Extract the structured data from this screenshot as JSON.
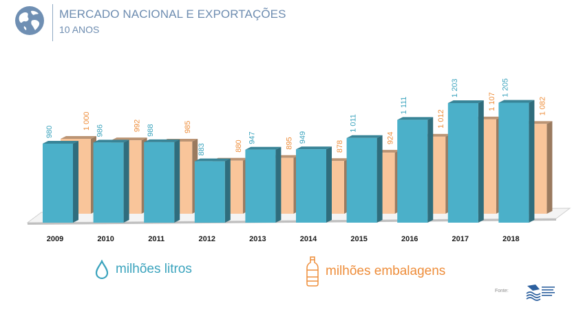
{
  "header": {
    "title": "MERCADO NACIONAL E EXPORTAÇÕES",
    "subtitle": "10 ANOS"
  },
  "legend": {
    "litros": "milhões litros",
    "embalagens": "milhões embalagens"
  },
  "source_label": "Fonte:",
  "colors": {
    "litros": "#4bb0c9",
    "embalagens": "#f9c59a",
    "litros_label": "#3aa3bd",
    "embalagens_label": "#ee8d3a",
    "title": "#6d8cb0"
  },
  "chart_data": {
    "type": "bar",
    "title": "MERCADO NACIONAL E EXPORTAÇÕES",
    "subtitle": "10 ANOS",
    "categories": [
      "2009",
      "2010",
      "2011",
      "2012",
      "2013",
      "2014",
      "2015",
      "2016",
      "2017",
      "2018"
    ],
    "series": [
      {
        "name": "milhões litros",
        "values": [
          980,
          986,
          988,
          883,
          947,
          949,
          1011,
          1111,
          1203,
          1205
        ],
        "labels": [
          "980",
          "986",
          "988",
          "883",
          "947",
          "949",
          "1 011",
          "1 111",
          "1 203",
          "1 205"
        ]
      },
      {
        "name": "milhões embalagens",
        "values": [
          1000,
          992,
          985,
          880,
          895,
          878,
          924,
          1012,
          1107,
          1082
        ],
        "labels": [
          "1 000",
          "992",
          "985",
          "880",
          "895",
          "878",
          "924",
          "1 012",
          "1 107",
          "1 082"
        ]
      }
    ],
    "xlabel": "",
    "ylabel": "",
    "style": "3d clustered columns"
  }
}
